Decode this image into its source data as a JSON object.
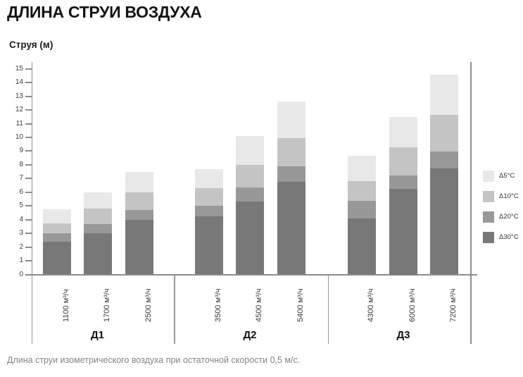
{
  "header": {
    "title": "ДЛИНА СТРУИ ВОЗДУХА"
  },
  "caption": "Длина струи изометрического воздуха при остаточной скорости 0,5 м/с.",
  "chart_data": {
    "type": "bar",
    "stacked": true,
    "title": "ДЛИНА СТРУИ ВОЗДУХА",
    "ylabel": "Струя (м)",
    "ylim": [
      0,
      15
    ],
    "ytick_step": 1,
    "grid": false,
    "legend_position": "right",
    "stack_order_bottom_to_top": [
      "d30",
      "d20",
      "d10",
      "d5"
    ],
    "legend": [
      {
        "key": "d5",
        "label": "Δ5°C",
        "color": "#e8e8e8"
      },
      {
        "key": "d10",
        "label": "Δ10°C",
        "color": "#c4c4c4"
      },
      {
        "key": "d20",
        "label": "Δ20°C",
        "color": "#989898"
      },
      {
        "key": "d30",
        "label": "Δ30°C",
        "color": "#787878"
      }
    ],
    "groups": [
      {
        "label": "Д1",
        "bars": [
          {
            "label": "1100 м³/ч",
            "values": {
              "d30": 2.4,
              "d20": 0.6,
              "d10": 0.75,
              "d5": 1.0
            },
            "total": 4.75
          },
          {
            "label": "1700 м³/ч",
            "values": {
              "d30": 3.0,
              "d20": 0.7,
              "d10": 1.1,
              "d5": 1.2
            },
            "total": 6.0
          },
          {
            "label": "2500 м³/ч",
            "values": {
              "d30": 4.0,
              "d20": 0.7,
              "d10": 1.3,
              "d5": 1.5
            },
            "total": 7.5
          }
        ]
      },
      {
        "label": "Д2",
        "bars": [
          {
            "label": "3500 м³/ч",
            "values": {
              "d30": 4.25,
              "d20": 0.75,
              "d10": 1.3,
              "d5": 1.4
            },
            "total": 7.7
          },
          {
            "label": "4500 м³/ч",
            "values": {
              "d30": 5.3,
              "d20": 1.05,
              "d10": 1.65,
              "d5": 2.1
            },
            "total": 10.1
          },
          {
            "label": "5400 м³/ч",
            "values": {
              "d30": 6.75,
              "d20": 1.15,
              "d10": 2.05,
              "d5": 2.65
            },
            "total": 12.6
          }
        ]
      },
      {
        "label": "Д3",
        "bars": [
          {
            "label": "4300 м³/ч",
            "values": {
              "d30": 4.1,
              "d20": 1.25,
              "d10": 1.45,
              "d5": 1.85
            },
            "total": 8.65
          },
          {
            "label": "6000 м³/ч",
            "values": {
              "d30": 6.25,
              "d20": 0.95,
              "d10": 2.1,
              "d5": 2.2
            },
            "total": 11.5
          },
          {
            "label": "7200 м³/ч",
            "values": {
              "d30": 7.75,
              "d20": 1.2,
              "d10": 2.7,
              "d5": 2.95
            },
            "total": 14.6
          }
        ]
      }
    ],
    "colors": {
      "axis": "#8c8c8c",
      "tick_label": "#3c3c3c",
      "bar_label": "#3a3a3a",
      "group_label": "#111111",
      "caption": "#848484"
    }
  }
}
